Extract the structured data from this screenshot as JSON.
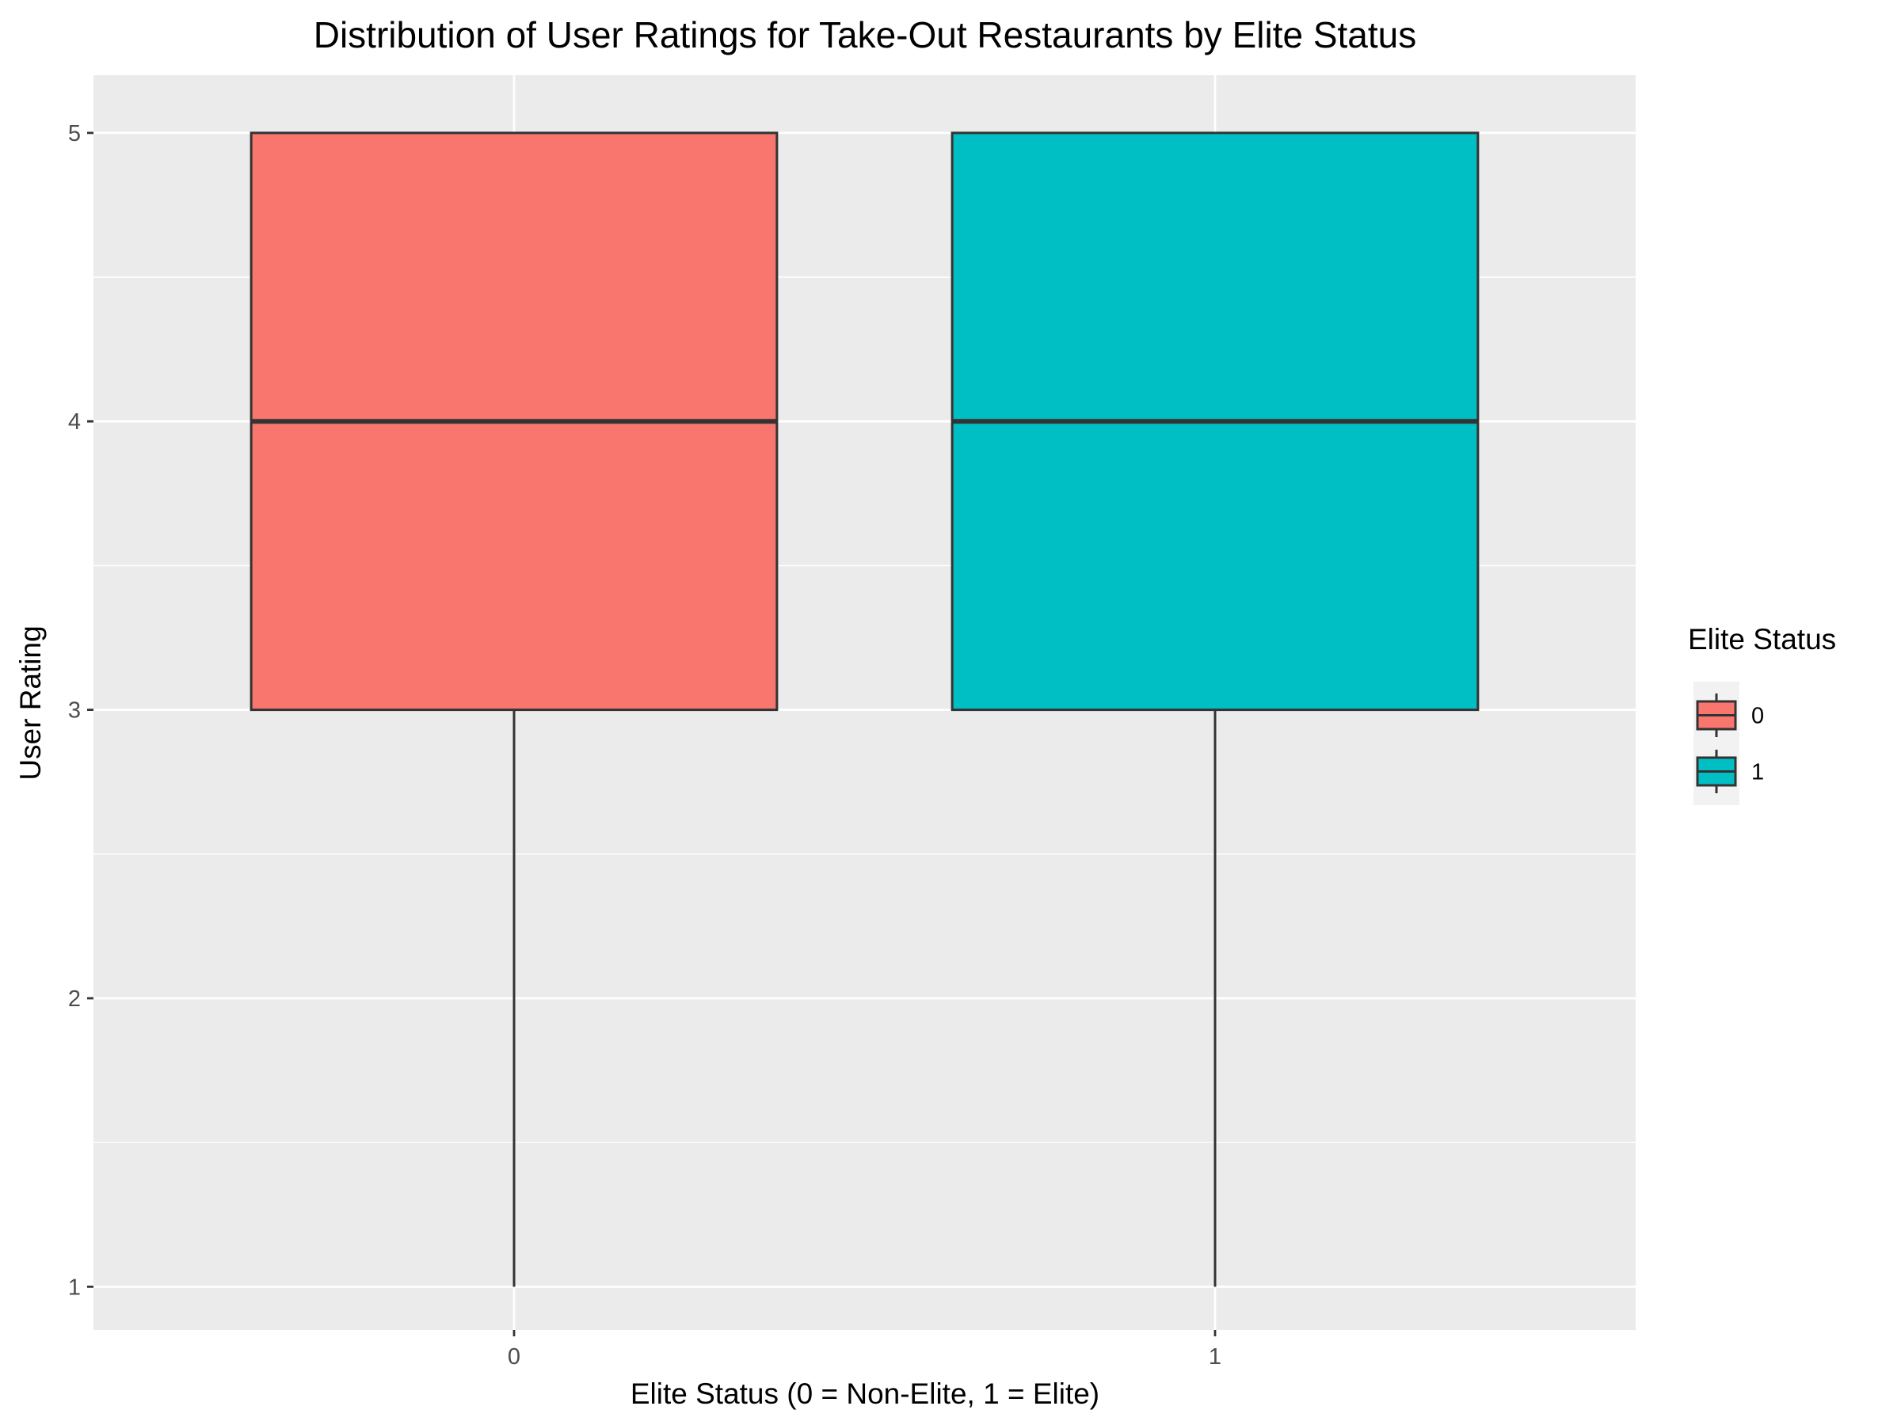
{
  "chart_data": {
    "type": "boxplot",
    "title": "Distribution of User Ratings for Take-Out Restaurants by Elite Status",
    "xlabel": "Elite Status (0 = Non-Elite, 1 = Elite)",
    "ylabel": "User Rating",
    "categories": [
      "0",
      "1"
    ],
    "y_ticks": [
      "1",
      "2",
      "3",
      "4",
      "5"
    ],
    "ylim": [
      0.85,
      5.2
    ],
    "grid": true,
    "legend": {
      "title": "Elite Status",
      "placement": "right",
      "entries": [
        "0",
        "1"
      ]
    },
    "boxes": [
      {
        "category": "0",
        "min": 1,
        "q1": 3,
        "median": 4,
        "q3": 5,
        "max": 5,
        "color": "#F8766D"
      },
      {
        "category": "1",
        "min": 1,
        "q1": 3,
        "median": 4,
        "q3": 5,
        "max": 5,
        "color": "#00BFC4"
      }
    ],
    "colors": {
      "panel_background": "#EBEBEB",
      "grid": "#FFFFFF",
      "box_outline": "#333333"
    }
  }
}
